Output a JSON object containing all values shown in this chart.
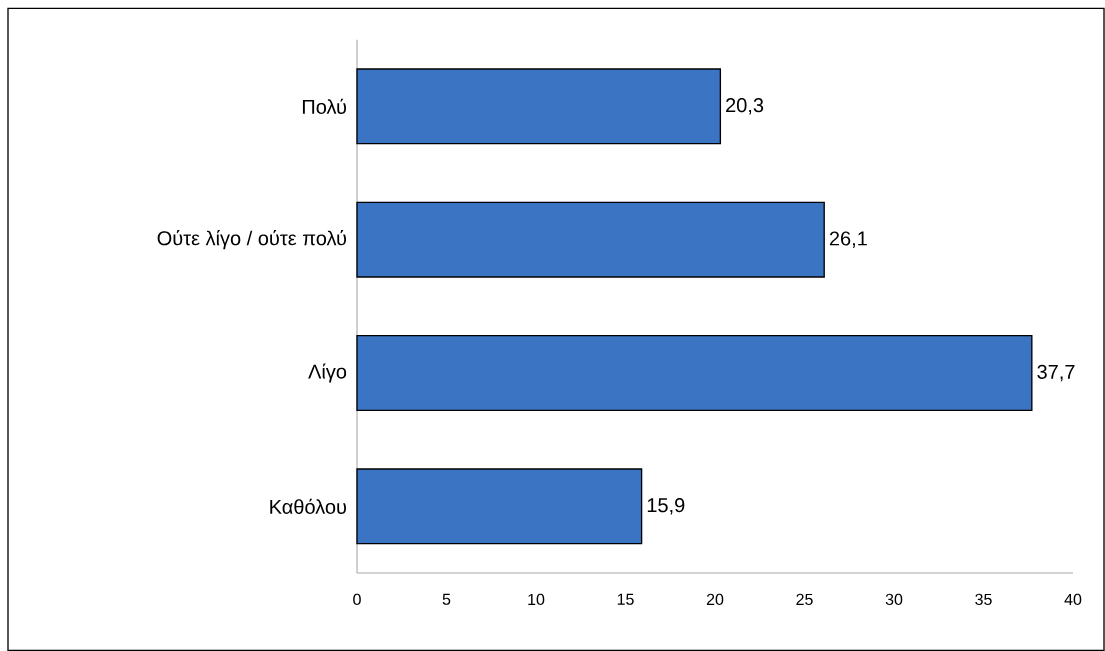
{
  "chart_data": {
    "type": "bar",
    "orientation": "horizontal",
    "categories": [
      "Πολύ",
      "Ούτε λίγο / ούτε πολύ",
      "Λίγο",
      "Καθόλου"
    ],
    "values": [
      20.3,
      26.1,
      37.7,
      15.9
    ],
    "value_labels": [
      "20,3",
      "26,1",
      "37,7",
      "15,9"
    ],
    "color": "#3b74c2",
    "xlim": [
      0,
      40
    ],
    "xticks": [
      0,
      5,
      10,
      15,
      20,
      25,
      30,
      35,
      40
    ],
    "grid": false
  }
}
